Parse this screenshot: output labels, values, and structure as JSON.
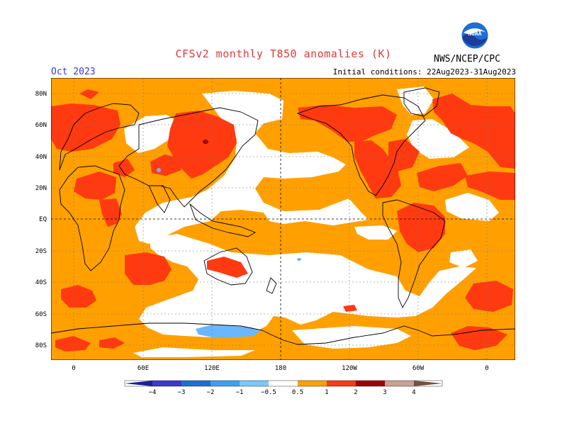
{
  "header": {
    "title": "CFSv2 monthly T850 anomalies (K)",
    "month": "Oct 2023",
    "initial_conditions": "Initial conditions: 22Aug2023-31Aug2023",
    "agency": "NWS/NCEP/CPC",
    "logo_text": "NOAA"
  },
  "map": {
    "lat_labels": [
      "80N",
      "60N",
      "40N",
      "20N",
      "EQ",
      "20S",
      "40S",
      "60S",
      "80S"
    ],
    "lon_labels": [
      "0",
      "60E",
      "120E",
      "180",
      "120W",
      "60W",
      "0"
    ],
    "colors": {
      "ocean_base": "#ffa000",
      "neutral": "#ffffff",
      "warm_1": "#ff6a1f",
      "warm_2": "#d00000",
      "cool_1": "#69b7ff"
    }
  },
  "colorbar": {
    "labels": [
      "−4",
      "−3",
      "−2",
      "−1",
      "−0.5",
      "0.5",
      "1",
      "2",
      "3",
      "4"
    ],
    "colors": [
      "#1e1e96",
      "#3a3ad0",
      "#1e6ed6",
      "#3ca0f0",
      "#78c8ff",
      "#ffffff",
      "#ffa000",
      "#ff3a10",
      "#a00000",
      "#c8a098",
      "#785040"
    ]
  }
}
